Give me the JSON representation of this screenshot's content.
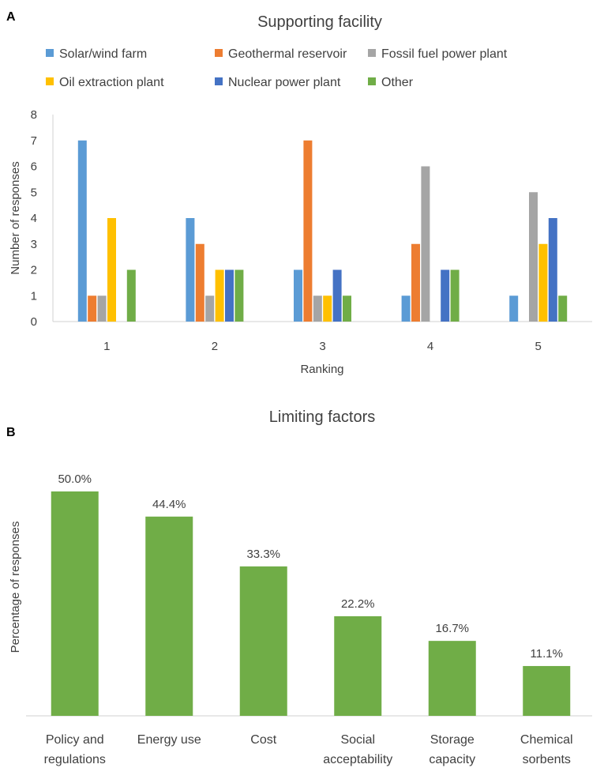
{
  "chart_data": [
    {
      "panel": "A",
      "type": "bar",
      "title": "Supporting facility",
      "xlabel": "Ranking",
      "ylabel": "Number of responses",
      "categories": [
        "1",
        "2",
        "3",
        "4",
        "5"
      ],
      "ylim": [
        0,
        8
      ],
      "yticks": [
        "0",
        "1",
        "2",
        "3",
        "4",
        "5",
        "6",
        "7",
        "8"
      ],
      "legend_position": "top",
      "series": [
        {
          "name": "Solar/wind farm",
          "color": "#5b9bd5",
          "values": [
            7,
            4,
            2,
            1,
            1
          ]
        },
        {
          "name": "Geothermal reservoir",
          "color": "#ed7d31",
          "values": [
            1,
            3,
            7,
            3,
            0
          ]
        },
        {
          "name": "Fossil fuel power plant",
          "color": "#a5a5a5",
          "values": [
            1,
            1,
            1,
            6,
            5
          ]
        },
        {
          "name": "Oil extraction plant",
          "color": "#ffc000",
          "values": [
            4,
            2,
            1,
            0,
            3
          ]
        },
        {
          "name": "Nuclear power plant",
          "color": "#4472c4",
          "values": [
            0,
            2,
            2,
            2,
            4
          ]
        },
        {
          "name": "Other",
          "color": "#70ad47",
          "values": [
            2,
            2,
            1,
            2,
            1
          ]
        }
      ]
    },
    {
      "panel": "B",
      "type": "bar",
      "title": "Limiting factors",
      "xlabel": "",
      "ylabel": "Percentage of responses",
      "bar_color": "#70ad47",
      "ylim": [
        0,
        55
      ],
      "categories": [
        [
          "Policy and",
          "regulations"
        ],
        [
          "Energy use"
        ],
        [
          "Cost"
        ],
        [
          "Social",
          "acceptability"
        ],
        [
          "Storage",
          "capacity"
        ],
        [
          "Chemical",
          "sorbents"
        ]
      ],
      "values": [
        50.0,
        44.4,
        33.3,
        22.2,
        16.7,
        11.1
      ],
      "data_labels": [
        "50.0%",
        "44.4%",
        "33.3%",
        "22.2%",
        "16.7%",
        "11.1%"
      ]
    }
  ]
}
